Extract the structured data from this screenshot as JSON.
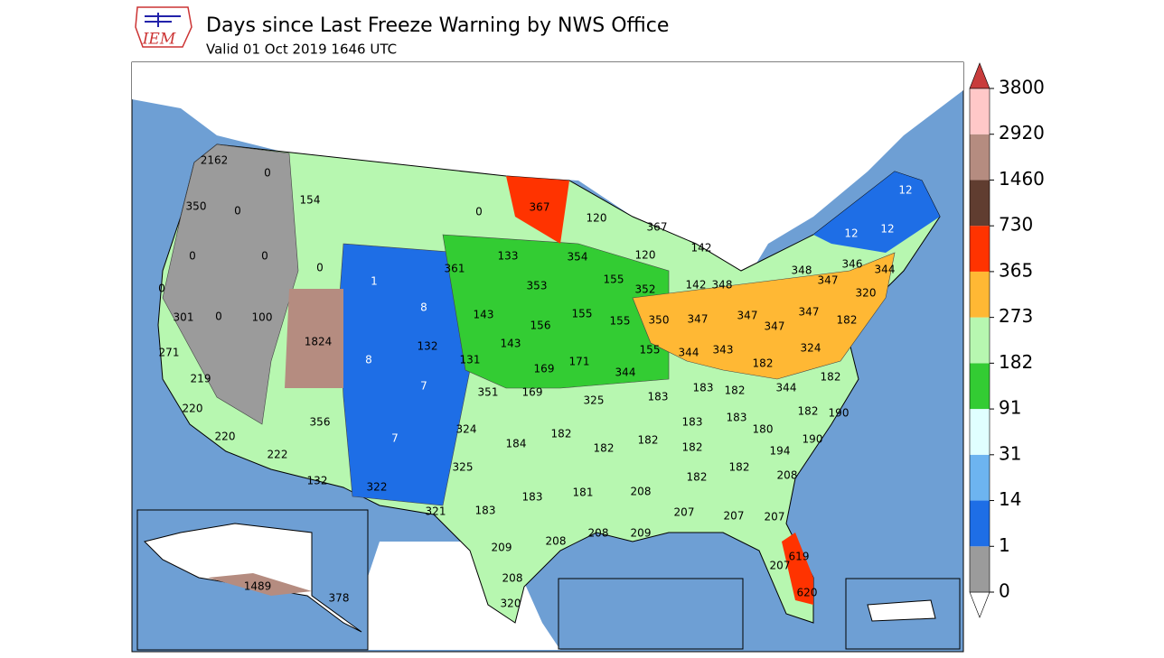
{
  "header": {
    "logo": "IEM",
    "title": "Days since Last Freeze Warning by NWS Office",
    "subtitle": "Valid 01 Oct 2019 1646 UTC"
  },
  "colorbar": {
    "levels": [
      0,
      1,
      14,
      31,
      91,
      182,
      273,
      365,
      730,
      1460,
      2920,
      3800
    ],
    "colors": [
      "#9b9b9b",
      "#1e6ee6",
      "#6db4f0",
      "#e0ffff",
      "#33cc33",
      "#b7f7b0",
      "#ffb834",
      "#ff3300",
      "#603d30",
      "#b58c80",
      "#ffc8c8"
    ],
    "over_color": "#c83c3c",
    "under_color": "#ffffff"
  },
  "map": {
    "labels": [
      2162,
      0,
      350,
      0,
      154,
      0,
      0,
      0,
      0,
      1,
      8,
      301,
      0,
      100,
      1824,
      271,
      219,
      8,
      7,
      132,
      131,
      143,
      143,
      156,
      155,
      155,
      169,
      169,
      171,
      351,
      325,
      344,
      155,
      350,
      344,
      343,
      347,
      347,
      347,
      347,
      324,
      182,
      182,
      344,
      183,
      182,
      183,
      182,
      220,
      356,
      220,
      222,
      132,
      7,
      322,
      324,
      325,
      184,
      182,
      182,
      182,
      183,
      182,
      183,
      180,
      194,
      182,
      190,
      190,
      182,
      182,
      208,
      181,
      208,
      183,
      183,
      321,
      207,
      207,
      207,
      208,
      209,
      209,
      208,
      208,
      320,
      207,
      619,
      620,
      1489,
      378,
      0,
      367,
      120,
      361,
      133,
      354,
      367,
      120,
      142,
      142,
      348,
      155,
      352,
      353,
      12,
      12,
      12,
      348,
      347,
      346,
      344,
      320
    ]
  }
}
